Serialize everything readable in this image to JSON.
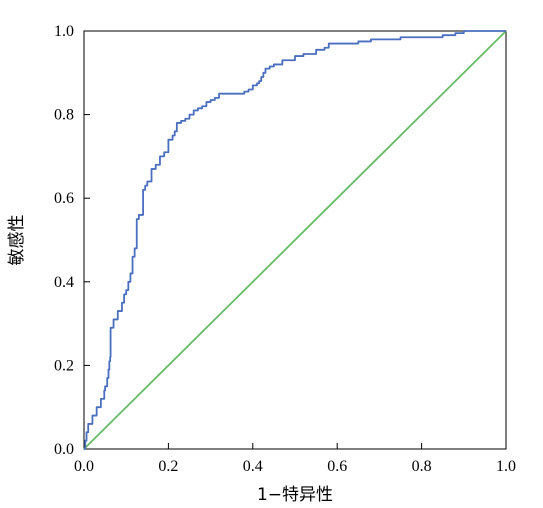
{
  "chart_data": {
    "type": "line",
    "title": "",
    "xlabel": "1−特异性",
    "ylabel": "敏感性",
    "xlim": [
      0,
      1
    ],
    "ylim": [
      0,
      1
    ],
    "grid": false,
    "legend": "none",
    "x_ticks": [
      "0.0",
      "0.2",
      "0.4",
      "0.6",
      "0.8",
      "1.0"
    ],
    "y_ticks": [
      "0.0",
      "0.2",
      "0.4",
      "0.6",
      "0.8",
      "1.0"
    ],
    "series": [
      {
        "color": "#4a6fbf",
        "step": true,
        "points": [
          [
            0.0,
            0.0
          ],
          [
            0.003,
            0.02
          ],
          [
            0.006,
            0.04
          ],
          [
            0.01,
            0.06
          ],
          [
            0.02,
            0.08
          ],
          [
            0.03,
            0.1
          ],
          [
            0.04,
            0.12
          ],
          [
            0.048,
            0.14
          ],
          [
            0.05,
            0.15
          ],
          [
            0.055,
            0.17
          ],
          [
            0.058,
            0.19
          ],
          [
            0.06,
            0.21
          ],
          [
            0.062,
            0.22
          ],
          [
            0.063,
            0.23
          ],
          [
            0.063,
            0.26
          ],
          [
            0.063,
            0.29
          ],
          [
            0.07,
            0.31
          ],
          [
            0.08,
            0.33
          ],
          [
            0.09,
            0.35
          ],
          [
            0.095,
            0.37
          ],
          [
            0.1,
            0.38
          ],
          [
            0.105,
            0.4
          ],
          [
            0.11,
            0.42
          ],
          [
            0.115,
            0.44
          ],
          [
            0.115,
            0.46
          ],
          [
            0.12,
            0.48
          ],
          [
            0.125,
            0.52
          ],
          [
            0.125,
            0.55
          ],
          [
            0.13,
            0.56
          ],
          [
            0.14,
            0.565
          ],
          [
            0.14,
            0.6
          ],
          [
            0.14,
            0.62
          ],
          [
            0.145,
            0.63
          ],
          [
            0.15,
            0.64
          ],
          [
            0.16,
            0.65
          ],
          [
            0.16,
            0.67
          ],
          [
            0.17,
            0.68
          ],
          [
            0.18,
            0.69
          ],
          [
            0.18,
            0.7
          ],
          [
            0.19,
            0.71
          ],
          [
            0.2,
            0.72
          ],
          [
            0.2,
            0.74
          ],
          [
            0.21,
            0.75
          ],
          [
            0.215,
            0.76
          ],
          [
            0.22,
            0.78
          ],
          [
            0.23,
            0.785
          ],
          [
            0.24,
            0.79
          ],
          [
            0.25,
            0.8
          ],
          [
            0.26,
            0.81
          ],
          [
            0.27,
            0.815
          ],
          [
            0.28,
            0.82
          ],
          [
            0.29,
            0.83
          ],
          [
            0.3,
            0.835
          ],
          [
            0.31,
            0.84
          ],
          [
            0.32,
            0.85
          ],
          [
            0.35,
            0.85
          ],
          [
            0.38,
            0.855
          ],
          [
            0.39,
            0.86
          ],
          [
            0.4,
            0.87
          ],
          [
            0.41,
            0.875
          ],
          [
            0.415,
            0.88
          ],
          [
            0.42,
            0.89
          ],
          [
            0.425,
            0.9
          ],
          [
            0.43,
            0.91
          ],
          [
            0.44,
            0.915
          ],
          [
            0.45,
            0.92
          ],
          [
            0.47,
            0.93
          ],
          [
            0.5,
            0.94
          ],
          [
            0.52,
            0.945
          ],
          [
            0.55,
            0.955
          ],
          [
            0.57,
            0.96
          ],
          [
            0.58,
            0.97
          ],
          [
            0.62,
            0.97
          ],
          [
            0.65,
            0.975
          ],
          [
            0.68,
            0.98
          ],
          [
            0.7,
            0.98
          ],
          [
            0.75,
            0.985
          ],
          [
            0.8,
            0.985
          ],
          [
            0.85,
            0.99
          ],
          [
            0.88,
            0.995
          ],
          [
            0.9,
            1.0
          ],
          [
            1.0,
            1.0
          ]
        ]
      },
      {
        "color": "#66bb66",
        "step": false,
        "points": [
          [
            0.0,
            0.0
          ],
          [
            1.0,
            1.0
          ]
        ]
      }
    ]
  }
}
